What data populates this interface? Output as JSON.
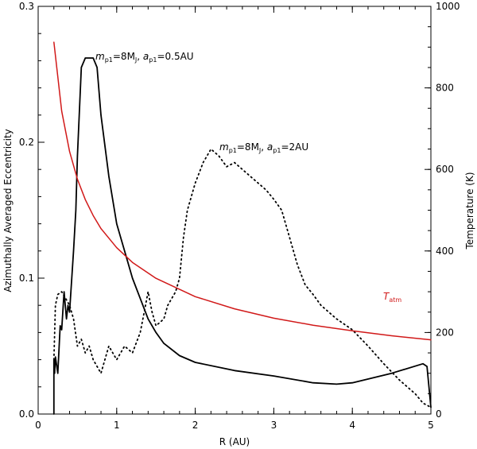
{
  "chart_data": {
    "type": "line",
    "xlabel": "R (AU)",
    "ylabel": "Azimuthally Averaged Eccentricity",
    "y2label": "Temperature (K)",
    "xlim": [
      0,
      5
    ],
    "ylim": [
      0,
      0.3
    ],
    "y2lim": [
      0,
      1000
    ],
    "x_ticks": [
      "0",
      "1",
      "2",
      "3",
      "4",
      "5"
    ],
    "y_ticks": [
      "0.0",
      "0.1",
      "0.2",
      "0.3"
    ],
    "y2_ticks": [
      "0",
      "200",
      "400",
      "600",
      "800",
      "1000"
    ],
    "colors": {
      "ecc": "#000000",
      "temp": "#d11919"
    },
    "annotations": {
      "solid": {
        "m_base": "m",
        "m_sub": "p1",
        "m_val": "=8M",
        "m_val_sub": "J",
        "sep": ",  ",
        "a_base": "a",
        "a_sub": "p1",
        "a_val": "=0.5AU"
      },
      "dotted": {
        "m_base": "m",
        "m_sub": "p1",
        "m_val": "=8M",
        "m_val_sub": "J",
        "sep": ",  ",
        "a_base": "a",
        "a_sub": "p1",
        "a_val": "=2AU"
      },
      "temp": {
        "base": "T",
        "sub": "atm"
      }
    },
    "series": [
      {
        "style": "solid",
        "axis": "left",
        "x": [
          0.2,
          0.2,
          0.21,
          0.22,
          0.25,
          0.28,
          0.3,
          0.33,
          0.36,
          0.38,
          0.4,
          0.45,
          0.48,
          0.5,
          0.55,
          0.6,
          0.65,
          0.7,
          0.75,
          0.8,
          0.9,
          1.0,
          1.1,
          1.2,
          1.3,
          1.4,
          1.5,
          1.6,
          1.8,
          2.0,
          2.5,
          3.0,
          3.5,
          3.8,
          4.0,
          4.5,
          4.9,
          4.95,
          5.0
        ],
        "y": [
          0.0,
          0.04,
          0.03,
          0.042,
          0.03,
          0.065,
          0.062,
          0.09,
          0.07,
          0.08,
          0.075,
          0.12,
          0.15,
          0.19,
          0.255,
          0.262,
          0.262,
          0.262,
          0.255,
          0.22,
          0.175,
          0.14,
          0.12,
          0.1,
          0.085,
          0.07,
          0.06,
          0.052,
          0.043,
          0.038,
          0.032,
          0.028,
          0.023,
          0.022,
          0.023,
          0.03,
          0.037,
          0.035,
          0.005
        ]
      },
      {
        "style": "dotted",
        "axis": "left",
        "x": [
          0.2,
          0.22,
          0.25,
          0.3,
          0.35,
          0.4,
          0.45,
          0.5,
          0.55,
          0.6,
          0.65,
          0.7,
          0.75,
          0.8,
          0.9,
          1.0,
          1.1,
          1.2,
          1.3,
          1.35,
          1.4,
          1.45,
          1.5,
          1.6,
          1.65,
          1.7,
          1.75,
          1.8,
          1.85,
          1.9,
          2.0,
          2.1,
          2.2,
          2.3,
          2.4,
          2.5,
          2.6,
          2.7,
          2.8,
          2.9,
          3.0,
          3.1,
          3.2,
          3.3,
          3.4,
          3.5,
          3.6,
          3.8,
          4.0,
          4.2,
          4.4,
          4.6,
          4.8,
          4.9,
          5.0
        ],
        "y": [
          0.04,
          0.08,
          0.088,
          0.09,
          0.085,
          0.08,
          0.07,
          0.05,
          0.055,
          0.045,
          0.05,
          0.04,
          0.035,
          0.03,
          0.05,
          0.04,
          0.05,
          0.045,
          0.06,
          0.075,
          0.09,
          0.075,
          0.065,
          0.07,
          0.08,
          0.085,
          0.09,
          0.1,
          0.13,
          0.15,
          0.17,
          0.185,
          0.195,
          0.19,
          0.182,
          0.185,
          0.18,
          0.175,
          0.17,
          0.165,
          0.158,
          0.15,
          0.13,
          0.11,
          0.095,
          0.088,
          0.08,
          0.07,
          0.062,
          0.05,
          0.037,
          0.025,
          0.015,
          0.008,
          0.005
        ]
      },
      {
        "style": "solid",
        "axis": "right",
        "name": "T_atm",
        "x": [
          0.2,
          0.3,
          0.4,
          0.5,
          0.6,
          0.7,
          0.8,
          1.0,
          1.2,
          1.5,
          2.0,
          2.5,
          3.0,
          3.5,
          4.0,
          4.5,
          5.0
        ],
        "y": [
          912,
          743,
          644,
          576,
          526,
          487,
          455,
          408,
          372,
          333,
          288,
          258,
          235,
          218,
          204,
          192,
          182
        ]
      }
    ]
  }
}
